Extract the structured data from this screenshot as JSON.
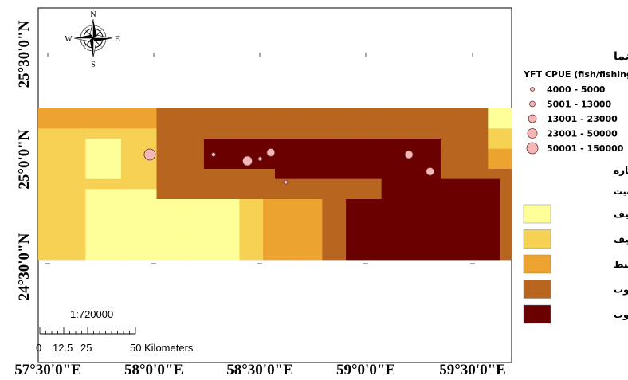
{
  "map": {
    "lon_labels": [
      "57°30'0\"E",
      "58°0'0\"E",
      "58°30'0\"E",
      "59°0'0\"E",
      "59°30'0\"E"
    ],
    "lat_labels": [
      "25°30'0\"N",
      "25°0'0\"N",
      "24°30'0\"N"
    ],
    "compass": {
      "n": "N",
      "s": "S",
      "e": "E",
      "w": "W"
    },
    "scale": {
      "ratio": "1:720000",
      "ticks": [
        "0",
        "12.5",
        "25",
        "50"
      ],
      "unit": "Kilometers"
    },
    "suitability_colors": [
      "#ffff99",
      "#f7d154",
      "#eda32f",
      "#b8651f",
      "#6b0000"
    ],
    "samples": [
      {
        "lon": 57.98,
        "lat": 25.03,
        "cpue_class": 5
      },
      {
        "lon": 58.28,
        "lat": 25.03,
        "cpue_class": 1
      },
      {
        "lon": 58.44,
        "lat": 25.0,
        "cpue_class": 4
      },
      {
        "lon": 58.5,
        "lat": 25.01,
        "cpue_class": 1
      },
      {
        "lon": 58.55,
        "lat": 25.04,
        "cpue_class": 3
      },
      {
        "lon": 58.62,
        "lat": 24.9,
        "cpue_class": 1
      },
      {
        "lon": 59.2,
        "lat": 25.03,
        "cpue_class": 3
      },
      {
        "lon": 59.3,
        "lat": 24.95,
        "cpue_class": 3
      }
    ]
  },
  "legend": {
    "title": "راهنما",
    "cpue_title": "YFT CPUE (fish/fishing set)",
    "cpue_classes": [
      "4000 - 5000",
      "5001 - 13000",
      "13001 - 23000",
      "23001 - 50000",
      "50001 - 150000"
    ],
    "mcda_title": "ارزیابی چند معیاره",
    "suitability_title": "مطلوبیت",
    "suitability_classes": [
      "بسیار ضعیف",
      "ضعیف",
      "متوسط",
      "خوب",
      "بسیار خوب"
    ]
  }
}
